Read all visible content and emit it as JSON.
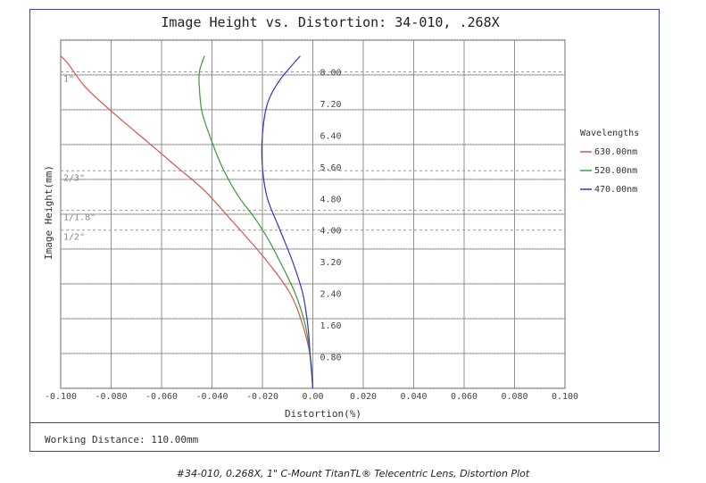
{
  "chart_data": {
    "type": "line",
    "title": "Image Height vs. Distortion: 34-010, .268X",
    "xlabel": "Distortion(%)",
    "ylabel": "Image Height(mm)",
    "xlim": [
      -0.1,
      0.1
    ],
    "ylim": [
      0,
      8.8
    ],
    "x_ticks": [
      "-0.100",
      "-0.080",
      "-0.060",
      "-0.040",
      "-0.020",
      "0.00",
      "0.020",
      "0.040",
      "0.060",
      "0.080",
      "0.100"
    ],
    "y_ticks": [
      "0.80",
      "1.60",
      "2.40",
      "3.20",
      "4.00",
      "4.80",
      "5.60",
      "6.40",
      "7.20",
      "8.00"
    ],
    "grid": true,
    "legend_title": "Wavelengths",
    "legend_position": "right",
    "sensor_lines": [
      {
        "label": "1\"",
        "y": 8.0
      },
      {
        "label": "2/3\"",
        "y": 5.5
      },
      {
        "label": "1/1.8\"",
        "y": 4.5
      },
      {
        "label": "1/2\"",
        "y": 4.0
      }
    ],
    "series": [
      {
        "name": "630.00nm",
        "color": "#d9534f",
        "points": [
          [
            0,
            0
          ],
          [
            -0.001,
            0.8
          ],
          [
            -0.004,
            1.6
          ],
          [
            -0.009,
            2.4
          ],
          [
            -0.018,
            3.2
          ],
          [
            -0.026,
            3.8
          ],
          [
            -0.033,
            4.3
          ],
          [
            -0.043,
            5.0
          ],
          [
            -0.054,
            5.6
          ],
          [
            -0.065,
            6.2
          ],
          [
            -0.078,
            6.9
          ],
          [
            -0.09,
            7.6
          ],
          [
            -0.097,
            8.2
          ],
          [
            -0.1,
            8.4
          ]
        ]
      },
      {
        "name": "520.00nm",
        "color": "#3c9a3c",
        "points": [
          [
            0,
            0
          ],
          [
            -0.001,
            0.8
          ],
          [
            -0.003,
            1.6
          ],
          [
            -0.007,
            2.4
          ],
          [
            -0.013,
            3.2
          ],
          [
            -0.018,
            3.8
          ],
          [
            -0.023,
            4.3
          ],
          [
            -0.03,
            4.9
          ],
          [
            -0.036,
            5.6
          ],
          [
            -0.041,
            6.4
          ],
          [
            -0.044,
            7.0
          ],
          [
            -0.045,
            7.6
          ],
          [
            -0.045,
            8.0
          ],
          [
            -0.043,
            8.4
          ]
        ]
      },
      {
        "name": "470.00nm",
        "color": "#2f35c4",
        "points": [
          [
            0,
            0
          ],
          [
            -0.001,
            0.8
          ],
          [
            -0.002,
            1.6
          ],
          [
            -0.004,
            2.4
          ],
          [
            -0.008,
            3.2
          ],
          [
            -0.013,
            4.0
          ],
          [
            -0.018,
            4.8
          ],
          [
            -0.02,
            5.6
          ],
          [
            -0.02,
            6.4
          ],
          [
            -0.018,
            7.2
          ],
          [
            -0.013,
            7.8
          ],
          [
            -0.005,
            8.4
          ]
        ]
      }
    ]
  },
  "footer": {
    "working_distance": "Working Distance: 110.00mm"
  },
  "caption": "#34-010, 0.268X, 1\" C-Mount TitanTL® Telecentric Lens, Distortion Plot"
}
